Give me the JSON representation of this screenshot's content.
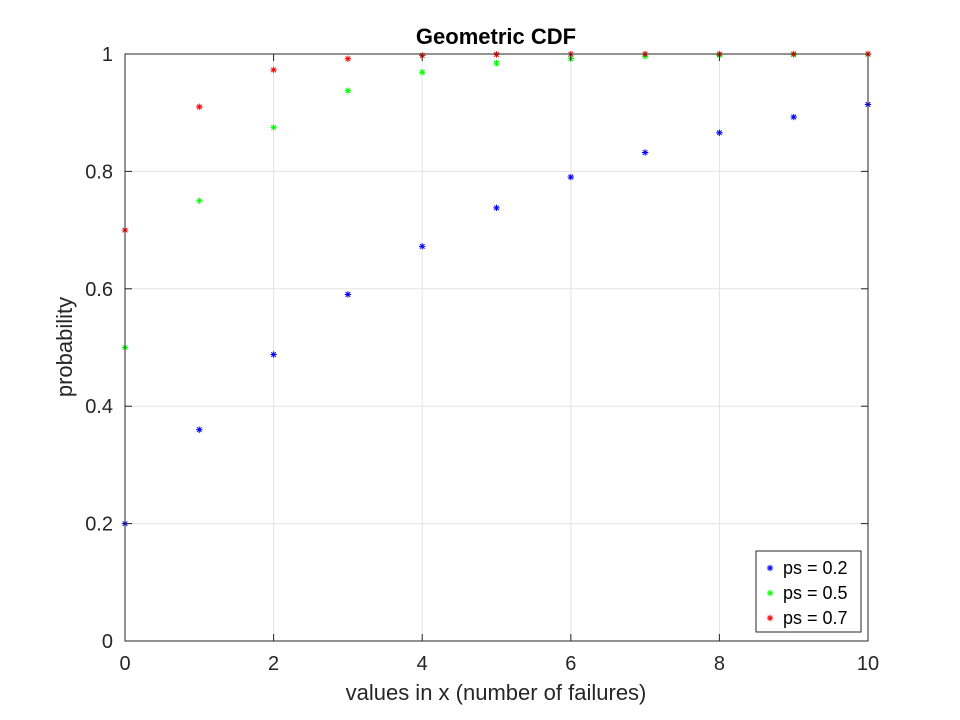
{
  "chart_data": {
    "type": "scatter",
    "title": "Geometric CDF",
    "xlabel": "values in x (number of failures)",
    "ylabel": "probability",
    "xlim": [
      0,
      10
    ],
    "ylim": [
      0,
      1
    ],
    "xticks": [
      "0",
      "2",
      "4",
      "6",
      "8",
      "10"
    ],
    "yticks": [
      "0",
      "0.2",
      "0.4",
      "0.6",
      "0.8",
      "1"
    ],
    "grid": true,
    "legend_position": "bottom-right",
    "marker": "asterisk",
    "x": [
      0,
      1,
      2,
      3,
      4,
      5,
      6,
      7,
      8,
      9,
      10
    ],
    "series": [
      {
        "name": "ps = 0.2",
        "color": "#0000ff",
        "values": [
          0.2,
          0.36,
          0.488,
          0.5904,
          0.6723,
          0.7379,
          0.7903,
          0.8322,
          0.8658,
          0.8926,
          0.9141
        ]
      },
      {
        "name": "ps = 0.5",
        "color": "#00ff00",
        "values": [
          0.5,
          0.75,
          0.875,
          0.9375,
          0.9688,
          0.9844,
          0.9922,
          0.9961,
          0.998,
          0.999,
          0.9995
        ]
      },
      {
        "name": "ps = 0.7",
        "color": "#ff0000",
        "values": [
          0.7,
          0.91,
          0.973,
          0.9919,
          0.9976,
          0.9993,
          0.9998,
          0.9999,
          1.0,
          1.0,
          1.0
        ]
      }
    ]
  }
}
